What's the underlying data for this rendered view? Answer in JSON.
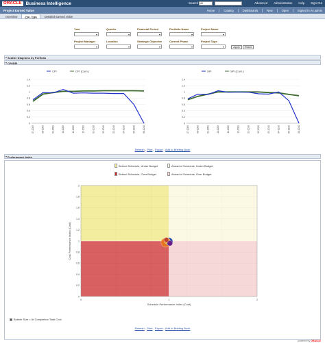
{
  "header": {
    "brand": "ORACLE",
    "product": "Business Intelligence",
    "search_label": "Search",
    "search_scope": "All",
    "links": [
      "Advanced",
      "Administration",
      "Help",
      "Sign Out"
    ]
  },
  "subbar": {
    "page_title": "Project Earned Value",
    "nav": [
      "Home",
      "Catalog",
      "Dashboards",
      "New",
      "Open",
      "Signed In As admin"
    ]
  },
  "tabs": [
    "Overview",
    "CPI / SPI",
    "Detailed Earned Value"
  ],
  "prompts": {
    "labels": [
      "Year",
      "Quarter",
      "Financial Period",
      "Portfolio Name",
      "Project Name",
      "Project Manager",
      "Location",
      "Strategic Objective",
      "Current Phase",
      "Project Type"
    ],
    "apply": "Apply",
    "reset": "Reset"
  },
  "sections": {
    "scatter": "Scatter Diagrams by Portfolio",
    "cpi_spi": "CPI/SPI",
    "performance": "Performance Index"
  },
  "links": [
    "Refresh",
    "Print",
    "Export",
    "Add to Briefing Book"
  ],
  "link_sep": " - ",
  "colors": {
    "blue": "#2233cc",
    "green": "#3d6b2f",
    "yellow": "#f3eda0",
    "light_yellow": "#fbf9e4",
    "red": "#d86060",
    "pink": "#f7d8d8"
  },
  "chart_data": [
    {
      "type": "line",
      "x": [
        "07-2009",
        "08-2009",
        "09-2009",
        "10-2009",
        "11-2009",
        "12-2009",
        "01-2010",
        "02-2010",
        "03-2010",
        "04-2010",
        "05-2010",
        "06-2010"
      ],
      "ylim": [
        0,
        1.4
      ],
      "yticks": [
        "0",
        "0.2",
        "0.4",
        "0.6",
        "0.8",
        "1",
        "1.2",
        "1.4"
      ],
      "series": [
        {
          "name": "CPI",
          "values": [
            0.75,
            0.98,
            0.97,
            1.08,
            0.96,
            0.97,
            0.96,
            0.96,
            0.95,
            0.95,
            0.6,
            0.0
          ]
        },
        {
          "name": "CPI (Cum.)",
          "values": [
            0.7,
            0.93,
            0.98,
            1.02,
            1.02,
            1.03,
            1.03,
            1.04,
            1.04,
            1.04,
            1.04,
            1.03
          ]
        }
      ]
    },
    {
      "type": "line",
      "x": [
        "07-2009",
        "08-2009",
        "09-2009",
        "10-2009",
        "11-2009",
        "12-2009",
        "01-2010",
        "02-2010",
        "03-2010",
        "04-2010",
        "05-2010",
        "06-2010"
      ],
      "ylim": [
        0,
        1.4
      ],
      "yticks": [
        "0",
        "0.2",
        "0.4",
        "0.6",
        "0.8",
        "1",
        "1.2",
        "1.4"
      ],
      "series": [
        {
          "name": "SPI",
          "values": [
            0.78,
            0.93,
            0.92,
            1.04,
            0.99,
            1.0,
            0.99,
            0.94,
            0.93,
            1.0,
            0.72,
            0.0
          ]
        },
        {
          "name": "SPI (Cum.)",
          "values": [
            0.75,
            0.86,
            0.93,
            1.0,
            1.0,
            1.0,
            1.0,
            1.0,
            0.98,
            0.97,
            0.92,
            0.88
          ]
        }
      ]
    },
    {
      "type": "scatter",
      "title": "",
      "xlabel": "Schedule Performance Index (Cost)",
      "ylabel": "Cost Performance Index (Cost)",
      "xlim": [
        0,
        2
      ],
      "ylim": [
        0,
        2
      ],
      "xticks": [
        "0",
        "1",
        "2"
      ],
      "yticks": [
        "0",
        "0.2",
        "0.4",
        "0.6",
        "0.8",
        "1",
        "1.2",
        "1.4",
        "1.6",
        "1.8",
        "2"
      ],
      "quadrant_legend": [
        "Behind Schedule, Under Budget",
        "Ahead of Schedule, Under Budget",
        "Behind Schedule, Over Budget",
        "Ahead of Schedule, Over Budget"
      ],
      "bubble_note": "Bubble Size = At Completion Total Cost",
      "points": [
        {
          "x": 0.96,
          "y": 0.97,
          "size": 3,
          "color": "#e8741a"
        },
        {
          "x": 1.0,
          "y": 0.99,
          "size": 2.5,
          "color": "#1a3f9c"
        },
        {
          "x": 0.98,
          "y": 1.0,
          "size": 2,
          "color": "#f0b030"
        },
        {
          "x": 1.01,
          "y": 0.96,
          "size": 1.8,
          "color": "#6b1e88"
        },
        {
          "x": 0.97,
          "y": 1.02,
          "size": 1.6,
          "color": "#c0392b"
        }
      ]
    }
  ],
  "footer": {
    "powered": "powered by",
    "brand": "ORACLE"
  }
}
